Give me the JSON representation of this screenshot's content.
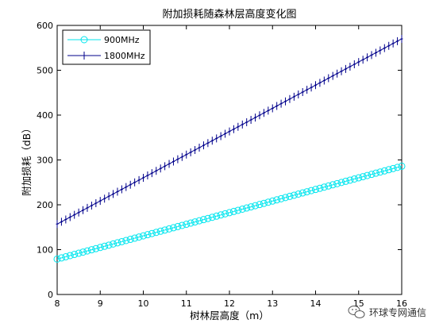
{
  "chart_data": {
    "type": "line",
    "title": "附加损耗随森林层高度变化图",
    "xlabel": "树林层高度（m）",
    "ylabel": "附加损耗（dB）",
    "xlim": [
      8,
      16
    ],
    "ylim": [
      0,
      600
    ],
    "x_ticks": [
      "8",
      "9",
      "10",
      "11",
      "12",
      "13",
      "14",
      "15",
      "16"
    ],
    "y_ticks": [
      "0",
      "100",
      "200",
      "300",
      "400",
      "500",
      "600"
    ],
    "grid": false,
    "legend_position": "top-left",
    "series": [
      {
        "name": "900MHz",
        "color": "#00e5ee",
        "marker": "circle",
        "x_start": 8,
        "x_end": 16,
        "points": 81,
        "y_start": 79,
        "y_end": 286
      },
      {
        "name": "1800MHz",
        "color": "#00008b",
        "marker": "plus",
        "x_start": 8,
        "x_end": 16,
        "points": 81,
        "y_start": 157,
        "y_end": 570
      }
    ]
  },
  "watermark": {
    "text": "环球专网通信",
    "icon": "wechat-bubble-icon"
  }
}
